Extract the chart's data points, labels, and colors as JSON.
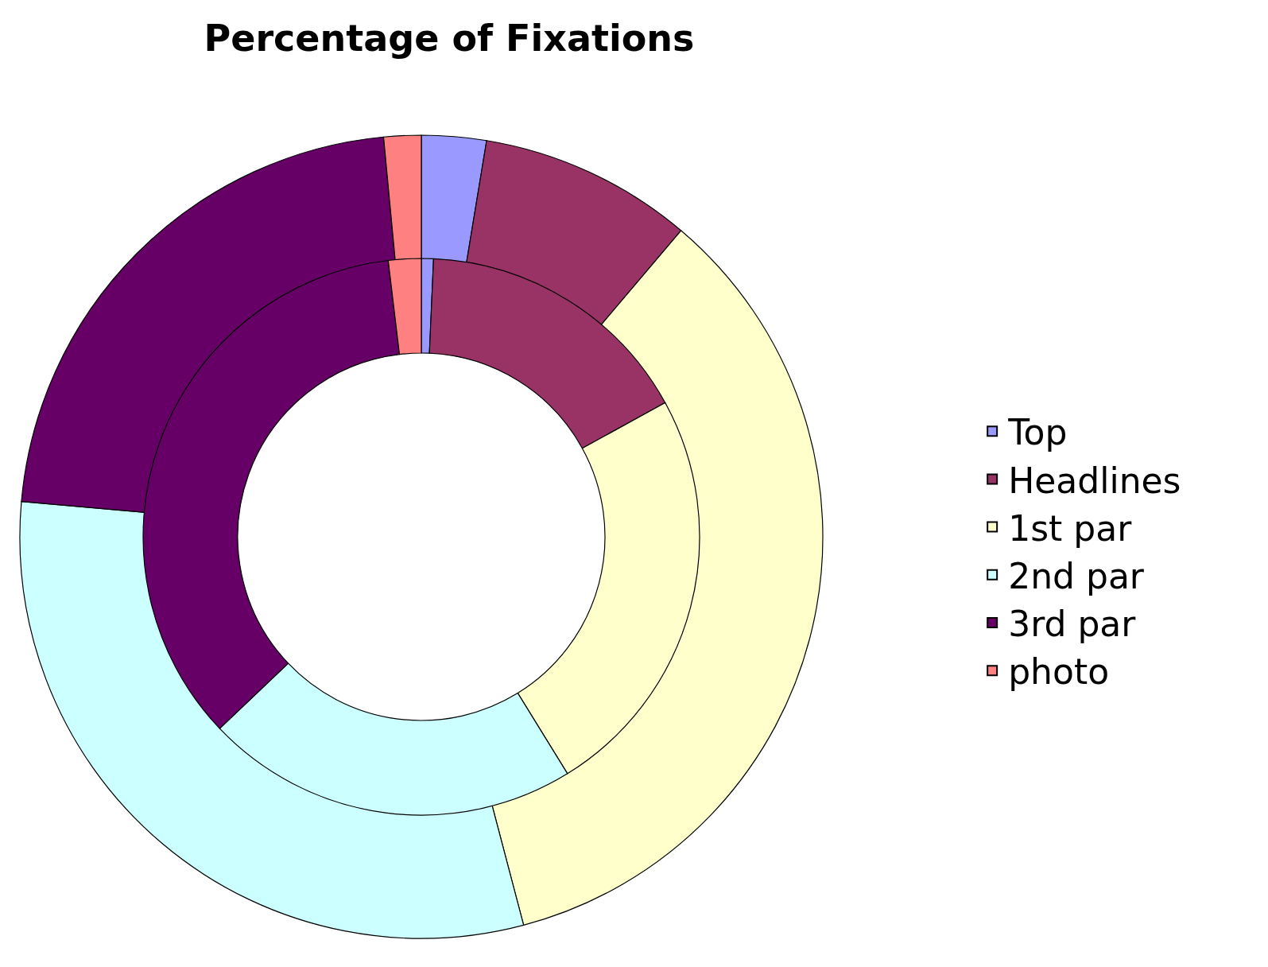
{
  "chart_data": {
    "type": "donut",
    "title": "Percentage of Fixations",
    "categories": [
      "Top",
      "Headlines",
      "1st par",
      "2nd par",
      "3rd par",
      "photo"
    ],
    "colors": [
      "#9999ff",
      "#993366",
      "#ffffcc",
      "#ccffff",
      "#660066",
      "#ff8080"
    ],
    "series": [
      {
        "values": [
          2.6,
          8.6,
          34.7,
          30.5,
          22.1,
          1.5
        ]
      },
      {
        "values": [
          0.7,
          16.3,
          24.2,
          21.7,
          35.2,
          1.9
        ]
      }
    ],
    "legend": "right"
  }
}
